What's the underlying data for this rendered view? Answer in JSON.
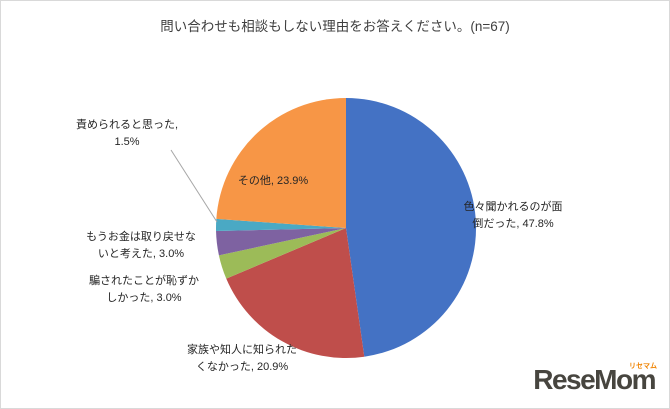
{
  "chart_data": {
    "type": "pie",
    "title": "問い合わせも相談もしない理由をお答えください。(n=67)",
    "unit": "%",
    "n": 67,
    "legend": "none",
    "start_angle_deg": 0,
    "direction": "clockwise",
    "slices": [
      {
        "label": "色々聞かれるのが面倒だった",
        "value": 47.8,
        "color": "#4472C4"
      },
      {
        "label": "家族や知人に知られたくなかった",
        "value": 20.9,
        "color": "#BF4E4B"
      },
      {
        "label": "騙されたことが恥ずかしかった",
        "value": 3.0,
        "color": "#9CBB58"
      },
      {
        "label": "もうお金は取り戻せないと考えた",
        "value": 3.0,
        "color": "#7E62A1"
      },
      {
        "label": "責められると思った",
        "value": 1.5,
        "color": "#4AA9C4"
      },
      {
        "label": "その他",
        "value": 23.9,
        "color": "#F79646"
      }
    ]
  },
  "logo": {
    "text": "ReseMom",
    "sub": "リセマム"
  }
}
